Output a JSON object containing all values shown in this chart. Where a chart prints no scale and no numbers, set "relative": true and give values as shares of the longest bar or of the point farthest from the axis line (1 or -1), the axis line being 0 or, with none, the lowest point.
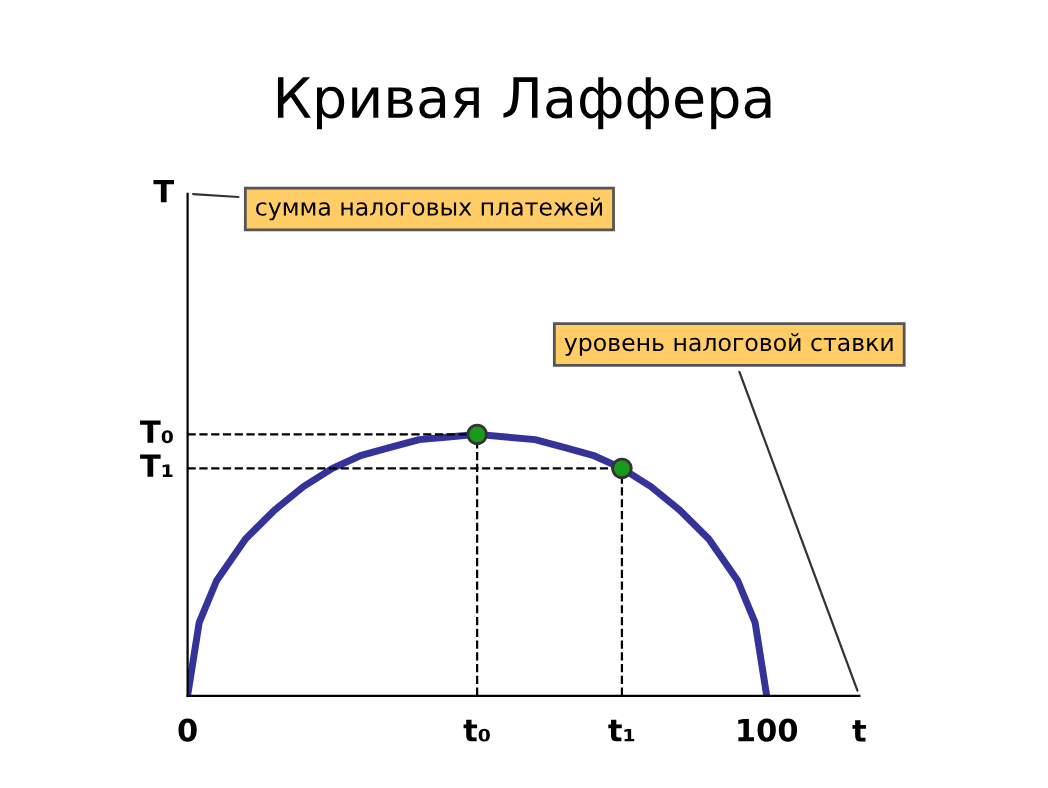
{
  "chart_data": {
    "type": "line",
    "title": "Кривая Лаффера",
    "xlabel": "t",
    "relative": true,
    "x": [
      0,
      2,
      5,
      10,
      15,
      20,
      25,
      30,
      35,
      40,
      45,
      50,
      55,
      60,
      65,
      70,
      75,
      80,
      85,
      90,
      95,
      98,
      100
    ],
    "series": [
      {
        "color": "#333399",
        "values": [
          0,
          0.28,
          0.44,
          0.6,
          0.71,
          0.8,
          0.87,
          0.92,
          0.95,
          0.98,
          0.99,
          1,
          0.99,
          0.98,
          0.95,
          0.92,
          0.87,
          0.8,
          0.71,
          0.6,
          0.44,
          0.28,
          0
        ]
      },
      {
        "type": "scatter",
        "marker": "circle",
        "color": "#1a9a1a",
        "x": [
          50,
          75
        ],
        "values": [
          1,
          0.87
        ]
      }
    ],
    "xlim": [
      0,
      116
    ],
    "xticks": [
      0,
      {
        "value": 50,
        "label": "t₀"
      },
      {
        "value": 75,
        "label": "t₁"
      },
      100
    ],
    "ref_lines": [
      {
        "axis": "y",
        "value": 1,
        "label": "T₀",
        "line_style": "dashed"
      },
      {
        "axis": "y",
        "value": 0.87,
        "label": "T₁",
        "line_style": "dashed"
      },
      {
        "axis": "x",
        "value": 50,
        "line_style": "dashed"
      },
      {
        "axis": "x",
        "value": 75,
        "line_style": "dashed"
      }
    ],
    "annotations": [
      "T",
      "сумма налоговых платежей",
      "уровень налоговой ставки"
    ],
    "marker": "none",
    "line_style": "solid",
    "grid": false
  }
}
